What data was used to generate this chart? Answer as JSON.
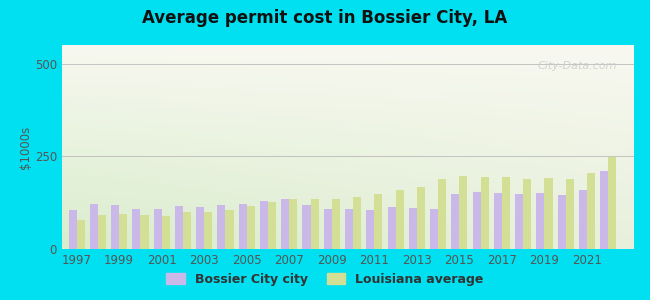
{
  "title": "Average permit cost in Bossier City, LA",
  "ylabel": "$1000s",
  "years": [
    1997,
    1998,
    1999,
    2000,
    2001,
    2002,
    2003,
    2004,
    2005,
    2006,
    2007,
    2008,
    2009,
    2010,
    2011,
    2012,
    2013,
    2014,
    2015,
    2016,
    2017,
    2018,
    2019,
    2020,
    2021,
    2022
  ],
  "bossier_values": [
    105,
    120,
    118,
    108,
    108,
    115,
    113,
    118,
    122,
    130,
    135,
    118,
    108,
    108,
    105,
    112,
    110,
    108,
    148,
    155,
    150,
    148,
    150,
    145,
    158,
    210
  ],
  "louisiana_values": [
    78,
    92,
    95,
    92,
    90,
    100,
    100,
    105,
    115,
    128,
    135,
    135,
    135,
    140,
    148,
    158,
    168,
    188,
    198,
    195,
    195,
    190,
    192,
    190,
    205,
    248
  ],
  "bossier_color": "#c9b8e8",
  "louisiana_color": "#d4df96",
  "outer_bg": "#00e0f0",
  "ylim": [
    0,
    550
  ],
  "yticks": [
    0,
    250,
    500
  ],
  "xtick_years": [
    1997,
    1999,
    2001,
    2003,
    2005,
    2007,
    2009,
    2011,
    2013,
    2015,
    2017,
    2019,
    2021
  ],
  "watermark": "City-Data.com",
  "legend_bossier": "Bossier City city",
  "legend_louisiana": "Louisiana average"
}
